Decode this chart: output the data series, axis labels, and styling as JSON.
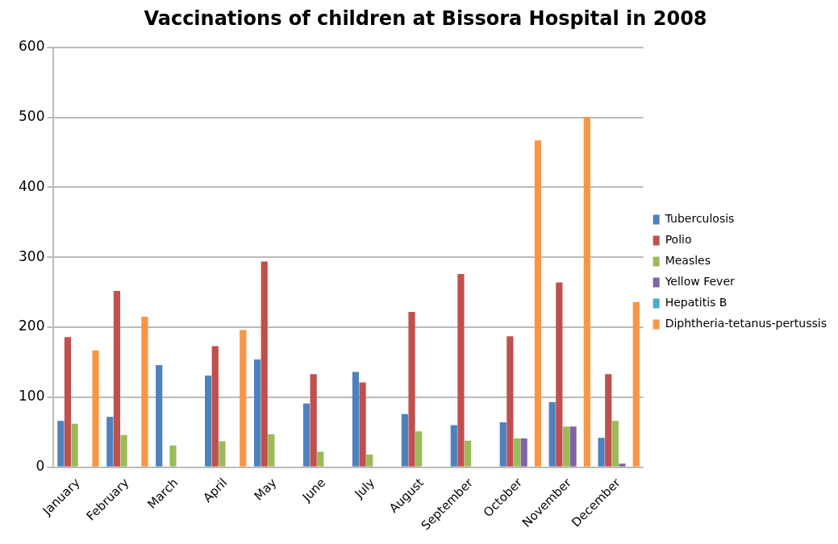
{
  "chart_data": {
    "type": "bar",
    "title": "Vaccinations of children at Bissora Hospital in 2008",
    "categories": [
      "January",
      "February",
      "March",
      "April",
      "May",
      "June",
      "July",
      "August",
      "September",
      "October",
      "November",
      "December"
    ],
    "series": [
      {
        "name": "Tuberculosis",
        "color": "#4f81bd",
        "values": [
          66,
          72,
          146,
          131,
          154,
          91,
          136,
          76,
          60,
          64,
          93,
          42
        ]
      },
      {
        "name": "Polio",
        "color": "#c0504d",
        "values": [
          186,
          252,
          0,
          173,
          294,
          133,
          121,
          222,
          276,
          187,
          264,
          133
        ]
      },
      {
        "name": "Measles",
        "color": "#9bbb59",
        "values": [
          62,
          46,
          31,
          37,
          47,
          22,
          18,
          51,
          38,
          41,
          58,
          66
        ]
      },
      {
        "name": "Yellow Fever",
        "color": "#8064a2",
        "values": [
          0,
          0,
          0,
          0,
          0,
          0,
          0,
          0,
          0,
          41,
          58,
          5
        ]
      },
      {
        "name": "Hepatitis B",
        "color": "#4bacc6",
        "values": [
          0,
          0,
          0,
          0,
          0,
          0,
          0,
          0,
          0,
          0,
          0,
          0
        ]
      },
      {
        "name": "Diphtheria-tetanus-pertussis",
        "color": "#f79646",
        "values": [
          167,
          215,
          0,
          196,
          0,
          0,
          0,
          0,
          0,
          467,
          500,
          236
        ]
      }
    ],
    "ylim": [
      0,
      600
    ],
    "yticks": [
      0,
      100,
      200,
      300,
      400,
      500,
      600
    ],
    "grid": "y",
    "legend": "right"
  }
}
